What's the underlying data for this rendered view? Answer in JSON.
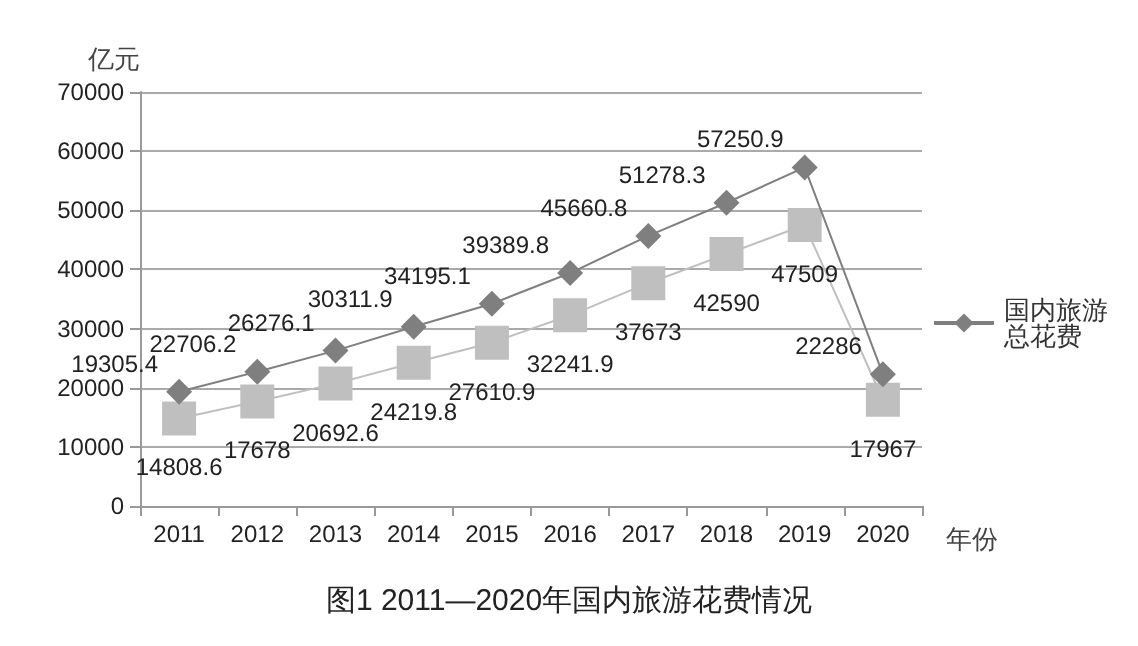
{
  "chart_data": {
    "type": "line",
    "title": "图1 2011—2020年国内旅游花费情况",
    "ylabel": "亿元",
    "xlabel": "年份",
    "categories": [
      "2011",
      "2012",
      "2013",
      "2014",
      "2015",
      "2016",
      "2017",
      "2018",
      "2019",
      "2020"
    ],
    "series": [
      {
        "name": "国内旅游总花费",
        "color": "#7f7f7f",
        "marker": "diamond",
        "values": [
          19305.4,
          22706.2,
          26276.1,
          30311.9,
          34195.1,
          39389.8,
          45660.8,
          51278.3,
          57250.9,
          22286
        ]
      },
      {
        "color": "#bfbfbf",
        "marker": "square",
        "values": [
          14808.6,
          17678,
          20692.6,
          24219.8,
          27610.9,
          32241.9,
          37673,
          42590,
          47509,
          17967
        ]
      }
    ],
    "ylim": [
      0,
      70000
    ],
    "yticks": [
      0,
      10000,
      20000,
      30000,
      40000,
      50000,
      60000,
      70000
    ],
    "grid": "y",
    "legend": "right",
    "data_labels": true
  }
}
